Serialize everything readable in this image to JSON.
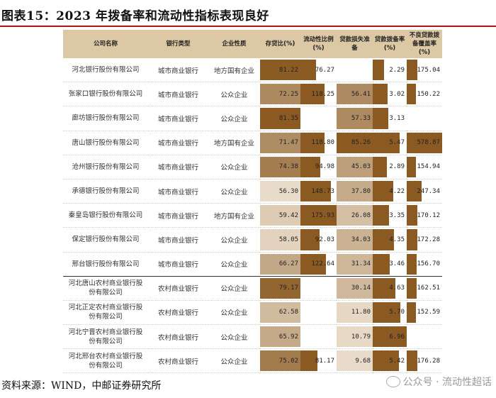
{
  "title": "图表15：2023 年拨备率和流动性指标表现良好",
  "footer": "资料来源：WIND，中邮证券研究所",
  "watermark": "公众号 · 流动性超话",
  "headers": [
    "公司名称",
    "银行类型",
    "企业性质",
    "存贷比(%)",
    "流动性比例(%)",
    "贷款损失准备",
    "贷款拨备率(%)",
    "不良贷款拨备覆盖率(%)"
  ],
  "colors": {
    "dark": "#8a5a22",
    "mid": "#b89060",
    "light": "#e8d6b8",
    "pale": "#f6ede0",
    "header": "#dcc8a4",
    "title_rule": "#b5141c"
  },
  "chart_data": {
    "type": "table",
    "columns": [
      "公司名称",
      "银行类型",
      "企业性质",
      "存贷比(%)",
      "流动性比例(%)",
      "贷款损失准备",
      "贷款拨备率(%)",
      "不良贷款拨备覆盖率(%)"
    ],
    "rows": [
      [
        "河北银行股份有限公司",
        "城市商业银行",
        "地方国有企业",
        "81.22",
        "76.27",
        "",
        "2.29",
        "175.04"
      ],
      [
        "张家口银行股份有限公司",
        "城市商业银行",
        "公众企业",
        "72.25",
        "118.25",
        "56.41",
        "3.02",
        "150.22"
      ],
      [
        "廊坊银行股份有限公司",
        "城市商业银行",
        "公众企业",
        "81.35",
        "",
        "57.33",
        "3.13",
        ""
      ],
      [
        "唐山银行股份有限公司",
        "城市商业银行",
        "地方国有企业",
        "71.47",
        "118.80",
        "85.26",
        "5.47",
        "578.87"
      ],
      [
        "沧州银行股份有限公司",
        "城市商业银行",
        "公众企业",
        "74.38",
        "94.98",
        "45.03",
        "2.89",
        "154.94"
      ],
      [
        "承德银行股份有限公司",
        "城市商业银行",
        "公众企业",
        "56.30",
        "148.73",
        "37.80",
        "4.22",
        "247.34"
      ],
      [
        "秦皇岛银行股份有限公司",
        "城市商业银行",
        "地方国有企业",
        "59.42",
        "175.93",
        "26.08",
        "3.35",
        "170.12"
      ],
      [
        "保定银行股份有限公司",
        "城市商业银行",
        "公众企业",
        "58.05",
        "92.03",
        "34.03",
        "4.35",
        "172.28"
      ],
      [
        "邢台银行股份有限公司",
        "城市商业银行",
        "公众企业",
        "66.27",
        "122.64",
        "31.34",
        "3.46",
        "156.70"
      ],
      [
        "河北唐山农村商业银行股份有限公司",
        "农村商业银行",
        "公众企业",
        "79.17",
        "",
        "30.14",
        "4.63",
        "162.51"
      ],
      [
        "河北正定农村商业银行股份有限公司",
        "农村商业银行",
        "公众企业",
        "62.58",
        "",
        "11.80",
        "5.70",
        "152.59"
      ],
      [
        "河北宁晋农村商业银行股份有限公司",
        "农村商业银行",
        "公众企业",
        "65.92",
        "",
        "10.79",
        "6.96",
        ""
      ],
      [
        "河北邢台农村商业银行股份有限公司",
        "农村商业银行",
        "公众企业",
        "75.02",
        "81.17",
        "9.68",
        "5.42",
        "176.28"
      ]
    ]
  }
}
